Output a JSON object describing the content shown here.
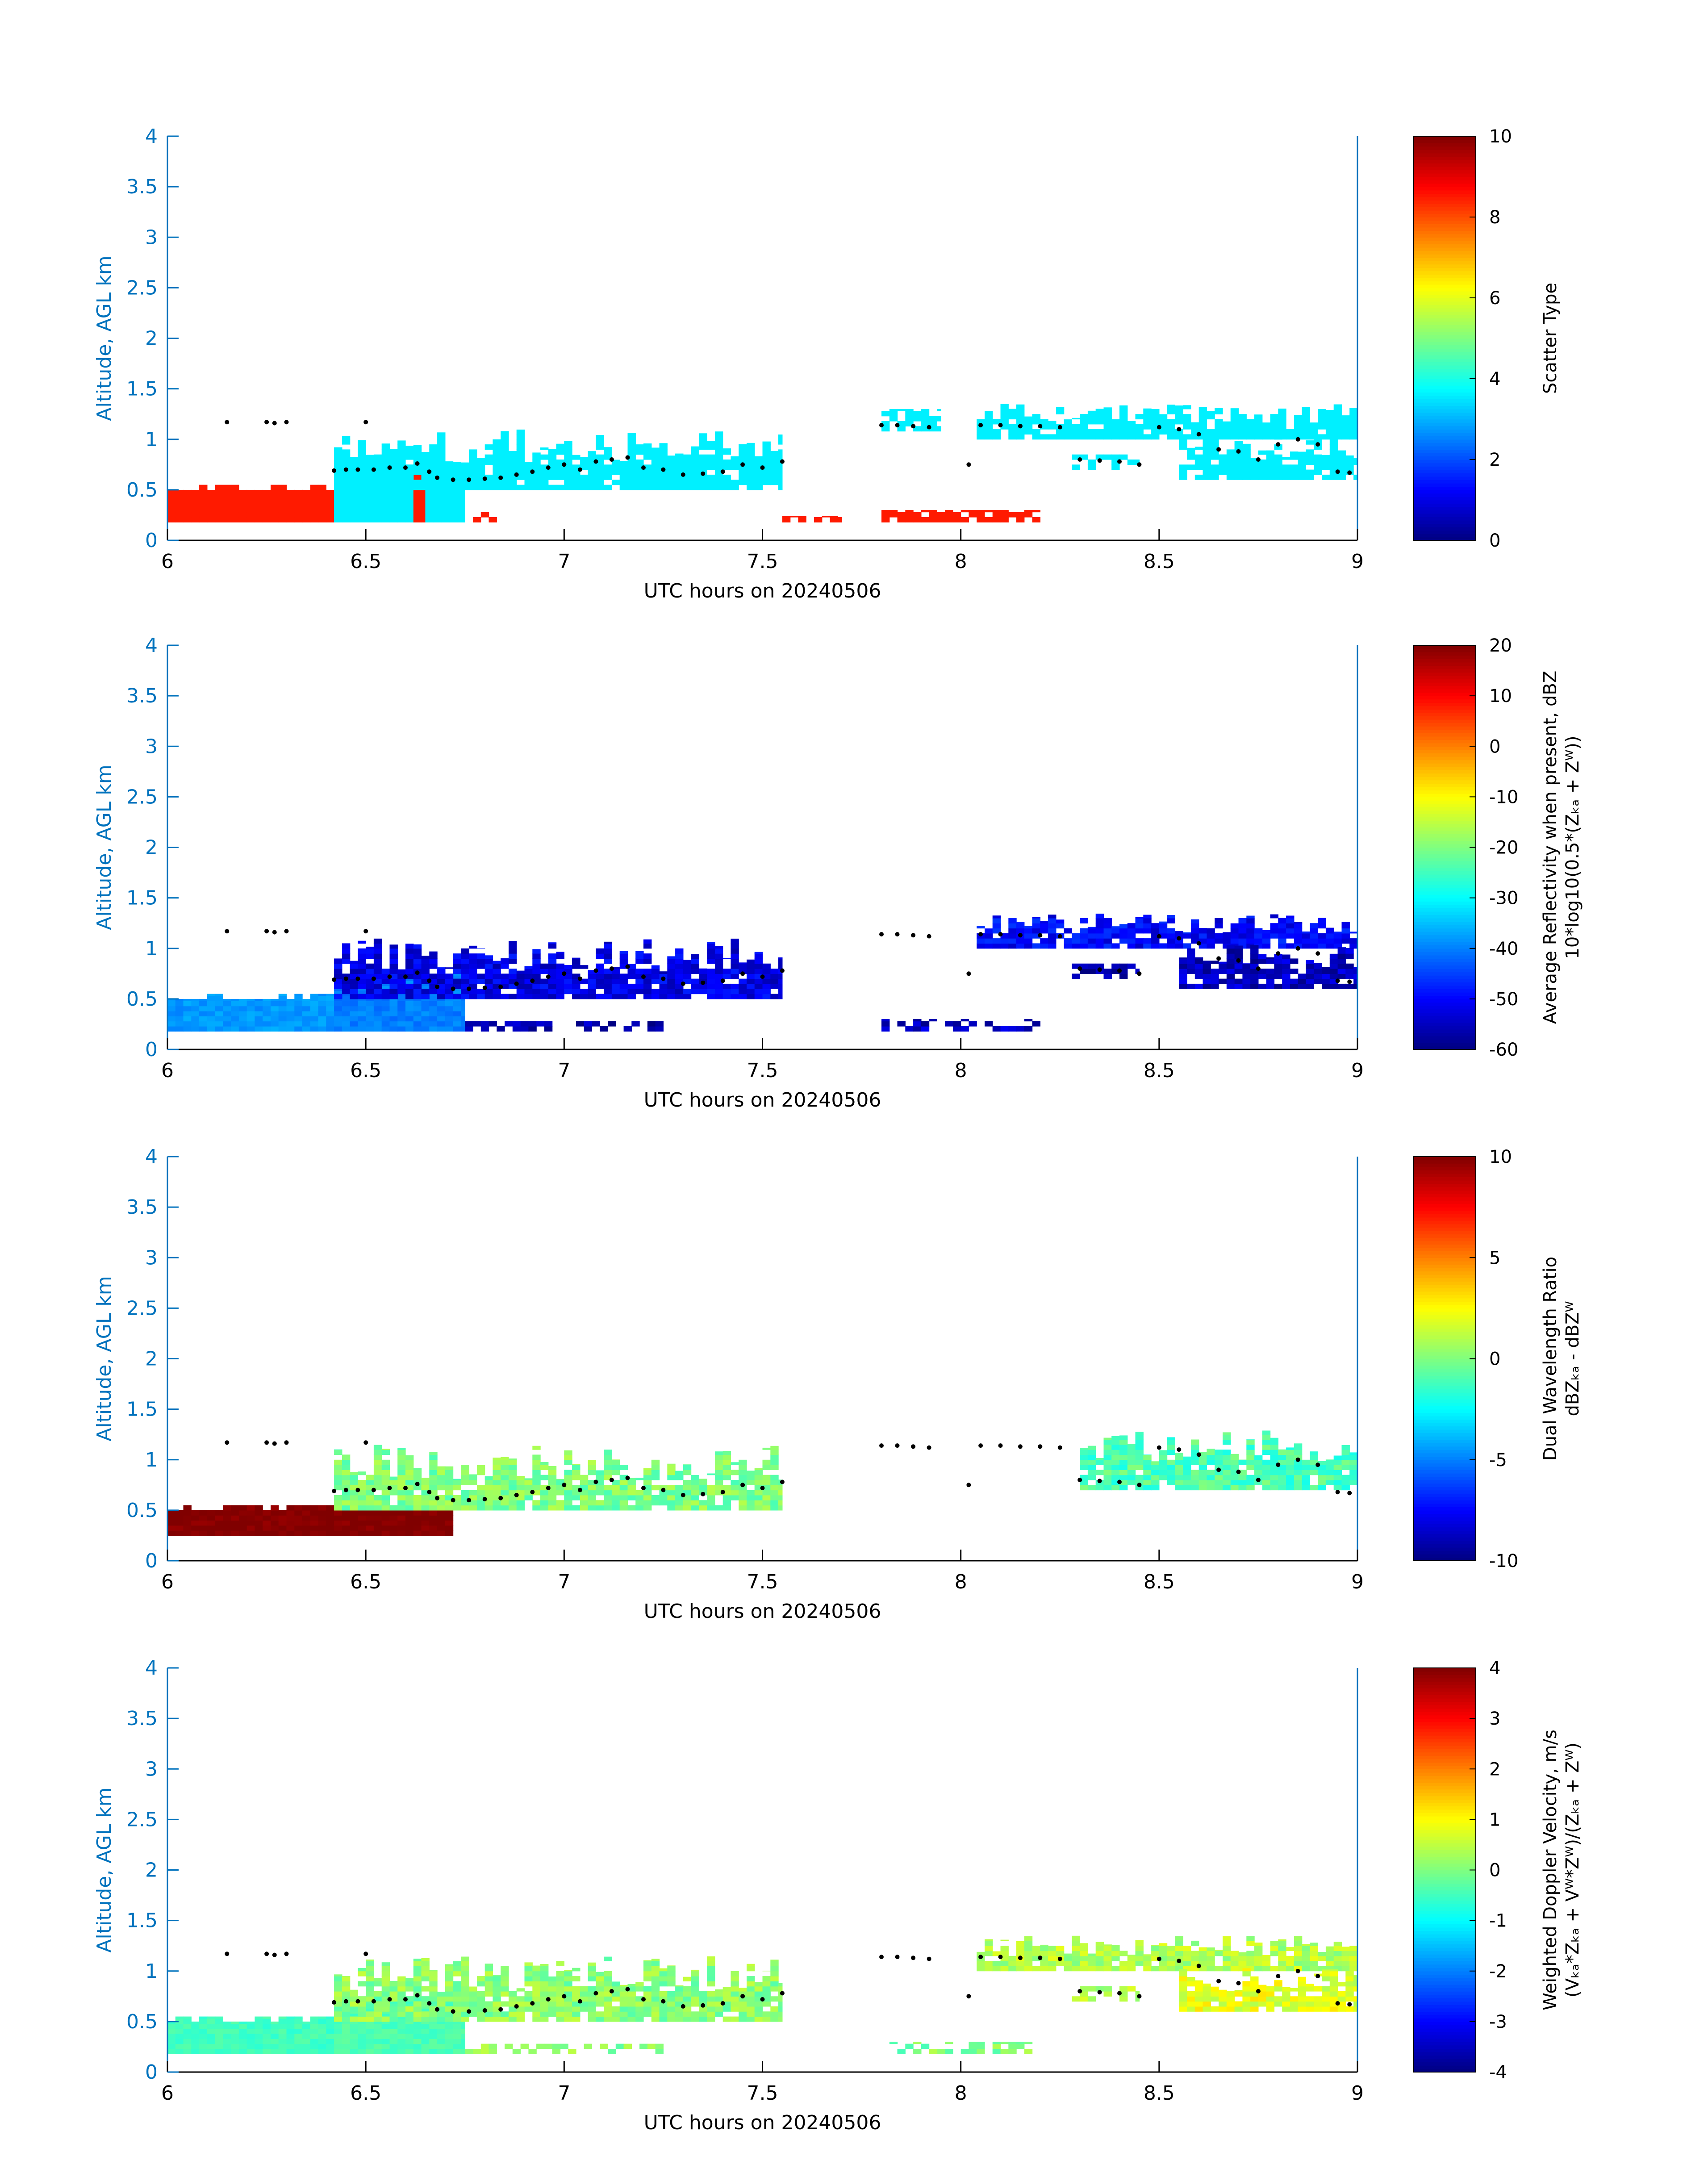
{
  "figure": {
    "date": "20240506"
  },
  "colors": {
    "axis_y": "#0072BD",
    "axis_right": "#0072BD",
    "ink": "#000000"
  },
  "chart_data": [
    {
      "type": "heatmap",
      "name": "scatter-type",
      "xlabel": "UTC hours on 20240506",
      "ylabel": "Altitude, AGL km",
      "xlim": [
        6,
        9
      ],
      "ylim": [
        0,
        4
      ],
      "xticks": [
        "6",
        "6.5",
        "7",
        "7.5",
        "8",
        "8.5",
        "9"
      ],
      "yticks": [
        "0",
        "0.5",
        "1",
        "1.5",
        "2",
        "2.5",
        "3",
        "3.5",
        "4"
      ],
      "colorbar": {
        "title_lines": [
          "Scatter Type"
        ],
        "clim": [
          0,
          10
        ],
        "ticks": [
          "0",
          "2",
          "4",
          "6",
          "8",
          "10"
        ]
      },
      "regions": [
        {
          "x0": 6.0,
          "x1": 6.42,
          "y0": 0.18,
          "y1": 0.55,
          "value": 8.5,
          "pattern": "ragged-top"
        },
        {
          "x0": 6.42,
          "x1": 6.62,
          "y0": 0.18,
          "y1": 0.75,
          "value": 3.6,
          "pattern": "block"
        },
        {
          "x0": 6.62,
          "x1": 6.65,
          "y0": 0.18,
          "y1": 0.65,
          "value": 8.5,
          "pattern": "block"
        },
        {
          "x0": 6.65,
          "x1": 6.75,
          "y0": 0.18,
          "y1": 0.75,
          "value": 3.6,
          "pattern": "block"
        },
        {
          "x0": 6.42,
          "x1": 7.55,
          "y0": 0.5,
          "y1": 1.1,
          "value": 3.6,
          "pattern": "columns"
        },
        {
          "x0": 6.75,
          "x1": 6.83,
          "y0": 0.18,
          "y1": 0.28,
          "value": 8.5,
          "pattern": "sparse"
        },
        {
          "x0": 7.8,
          "x1": 7.95,
          "y0": 1.08,
          "y1": 1.3,
          "value": 3.6,
          "pattern": "sparse"
        },
        {
          "x0": 8.04,
          "x1": 9.0,
          "y0": 1.0,
          "y1": 1.35,
          "value": 3.6,
          "pattern": "columns"
        },
        {
          "x0": 8.28,
          "x1": 8.45,
          "y0": 0.7,
          "y1": 0.85,
          "value": 3.6,
          "pattern": "sparse"
        },
        {
          "x0": 8.55,
          "x1": 9.0,
          "y0": 0.6,
          "y1": 1.05,
          "value": 3.6,
          "pattern": "columns"
        },
        {
          "x0": 7.8,
          "x1": 8.2,
          "y0": 0.18,
          "y1": 0.3,
          "value": 8.5,
          "pattern": "sparse"
        },
        {
          "x0": 7.55,
          "x1": 7.7,
          "y0": 0.18,
          "y1": 0.24,
          "value": 8.5,
          "pattern": "sparse"
        }
      ],
      "cloud_base_points": [
        [
          6.15,
          1.17
        ],
        [
          6.25,
          1.17
        ],
        [
          6.27,
          1.16
        ],
        [
          6.3,
          1.17
        ],
        [
          6.5,
          1.17
        ],
        [
          6.42,
          0.69
        ],
        [
          6.45,
          0.7
        ],
        [
          6.48,
          0.7
        ],
        [
          6.52,
          0.7
        ],
        [
          6.56,
          0.72
        ],
        [
          6.6,
          0.72
        ],
        [
          6.63,
          0.76
        ],
        [
          6.66,
          0.68
        ],
        [
          6.68,
          0.62
        ],
        [
          6.72,
          0.6
        ],
        [
          6.76,
          0.6
        ],
        [
          6.8,
          0.61
        ],
        [
          6.84,
          0.62
        ],
        [
          6.88,
          0.65
        ],
        [
          6.92,
          0.68
        ],
        [
          6.96,
          0.72
        ],
        [
          7.0,
          0.75
        ],
        [
          7.04,
          0.7
        ],
        [
          7.08,
          0.78
        ],
        [
          7.12,
          0.8
        ],
        [
          7.16,
          0.82
        ],
        [
          7.2,
          0.72
        ],
        [
          7.25,
          0.7
        ],
        [
          7.3,
          0.65
        ],
        [
          7.35,
          0.66
        ],
        [
          7.4,
          0.68
        ],
        [
          7.45,
          0.75
        ],
        [
          7.5,
          0.72
        ],
        [
          7.55,
          0.78
        ],
        [
          7.8,
          1.14
        ],
        [
          7.84,
          1.14
        ],
        [
          7.88,
          1.13
        ],
        [
          7.92,
          1.12
        ],
        [
          8.02,
          0.75
        ],
        [
          8.05,
          1.14
        ],
        [
          8.1,
          1.14
        ],
        [
          8.15,
          1.13
        ],
        [
          8.2,
          1.13
        ],
        [
          8.25,
          1.12
        ],
        [
          8.3,
          0.8
        ],
        [
          8.35,
          0.79
        ],
        [
          8.4,
          0.78
        ],
        [
          8.45,
          0.75
        ],
        [
          8.5,
          1.12
        ],
        [
          8.55,
          1.1
        ],
        [
          8.6,
          1.05
        ],
        [
          8.65,
          0.9
        ],
        [
          8.7,
          0.88
        ],
        [
          8.75,
          0.8
        ],
        [
          8.8,
          0.95
        ],
        [
          8.85,
          1.0
        ],
        [
          8.9,
          0.95
        ],
        [
          8.95,
          0.68
        ],
        [
          8.98,
          0.67
        ]
      ]
    },
    {
      "type": "heatmap",
      "name": "reflectivity",
      "xlabel": "UTC hours on 20240506",
      "ylabel": "Altitude, AGL km",
      "xlim": [
        6,
        9
      ],
      "ylim": [
        0,
        4
      ],
      "xticks": [
        "6",
        "6.5",
        "7",
        "7.5",
        "8",
        "8.5",
        "9"
      ],
      "yticks": [
        "0",
        "0.5",
        "1",
        "1.5",
        "2",
        "2.5",
        "3",
        "3.5",
        "4"
      ],
      "colorbar": {
        "title_lines": [
          "Average Reflectivity when present, dBZ",
          "10*log10(0.5*(Zₖₐ + Zᵂ))"
        ],
        "clim": [
          -60,
          20
        ],
        "ticks": [
          "-60",
          "-50",
          "-40",
          "-30",
          "-20",
          "-10",
          "0",
          "10",
          "20"
        ]
      },
      "regions": [
        {
          "x0": 6.0,
          "x1": 6.42,
          "y0": 0.18,
          "y1": 0.55,
          "value": -38,
          "pattern": "ragged-top"
        },
        {
          "x0": 6.42,
          "x1": 6.75,
          "y0": 0.18,
          "y1": 0.75,
          "value": -40,
          "pattern": "block"
        },
        {
          "x0": 6.42,
          "x1": 7.55,
          "y0": 0.5,
          "y1": 1.1,
          "value": -52,
          "pattern": "columns"
        },
        {
          "x0": 6.75,
          "x1": 7.25,
          "y0": 0.18,
          "y1": 0.28,
          "value": -57,
          "pattern": "sparse"
        },
        {
          "x0": 7.8,
          "x1": 8.2,
          "y0": 0.18,
          "y1": 0.3,
          "value": -55,
          "pattern": "sparse"
        },
        {
          "x0": 8.04,
          "x1": 9.0,
          "y0": 1.0,
          "y1": 1.35,
          "value": -50,
          "pattern": "columns"
        },
        {
          "x0": 8.28,
          "x1": 8.45,
          "y0": 0.7,
          "y1": 0.85,
          "value": -58,
          "pattern": "sparse"
        },
        {
          "x0": 8.55,
          "x1": 9.0,
          "y0": 0.6,
          "y1": 1.05,
          "value": -55,
          "pattern": "columns"
        }
      ]
    },
    {
      "type": "heatmap",
      "name": "dual-wavelength-ratio",
      "xlabel": "UTC hours on 20240506",
      "ylabel": "Altitude, AGL km",
      "xlim": [
        6,
        9
      ],
      "ylim": [
        0,
        4
      ],
      "xticks": [
        "6",
        "6.5",
        "7",
        "7.5",
        "8",
        "8.5",
        "9"
      ],
      "yticks": [
        "0",
        "0.5",
        "1",
        "1.5",
        "2",
        "2.5",
        "3",
        "3.5",
        "4"
      ],
      "colorbar": {
        "title_lines": [
          "Dual Wavelength Ratio",
          "dBZₖₐ - dBZᵂ"
        ],
        "clim": [
          -10,
          10
        ],
        "ticks": [
          "-10",
          "-5",
          "0",
          "5",
          "10"
        ]
      },
      "regions": [
        {
          "x0": 6.0,
          "x1": 6.72,
          "y0": 0.25,
          "y1": 0.55,
          "value": 10,
          "pattern": "ragged-top"
        },
        {
          "x0": 6.42,
          "x1": 7.55,
          "y0": 0.5,
          "y1": 1.15,
          "value": 0,
          "pattern": "columns"
        },
        {
          "x0": 8.3,
          "x1": 9.0,
          "y0": 0.7,
          "y1": 1.3,
          "value": -1,
          "pattern": "columns"
        }
      ]
    },
    {
      "type": "heatmap",
      "name": "doppler-velocity",
      "xlabel": "UTC hours on 20240506",
      "ylabel": "Altitude, AGL km",
      "xlim": [
        6,
        9
      ],
      "ylim": [
        0,
        4
      ],
      "xticks": [
        "6",
        "6.5",
        "7",
        "7.5",
        "8",
        "8.5",
        "9"
      ],
      "yticks": [
        "0",
        "0.5",
        "1",
        "1.5",
        "2",
        "2.5",
        "3",
        "3.5",
        "4"
      ],
      "colorbar": {
        "title_lines": [
          "Weighted Doppler Velocity, m/s",
          "(Vₖₐ*Zₖₐ + Vᵂ*Zᵂ)/(Zₖₐ + Zᵂ)"
        ],
        "clim": [
          -4,
          4
        ],
        "ticks": [
          "-4",
          "-3",
          "-2",
          "-1",
          "0",
          "1",
          "2",
          "3",
          "4"
        ]
      },
      "regions": [
        {
          "x0": 6.0,
          "x1": 6.42,
          "y0": 0.18,
          "y1": 0.55,
          "value": -0.5,
          "pattern": "ragged-top"
        },
        {
          "x0": 6.42,
          "x1": 6.75,
          "y0": 0.18,
          "y1": 0.75,
          "value": -0.4,
          "pattern": "block"
        },
        {
          "x0": 6.42,
          "x1": 7.55,
          "y0": 0.5,
          "y1": 1.15,
          "value": 0.1,
          "pattern": "columns"
        },
        {
          "x0": 6.75,
          "x1": 7.25,
          "y0": 0.18,
          "y1": 0.28,
          "value": 0.1,
          "pattern": "sparse"
        },
        {
          "x0": 7.8,
          "x1": 8.2,
          "y0": 0.18,
          "y1": 0.3,
          "value": 0.0,
          "pattern": "sparse"
        },
        {
          "x0": 8.04,
          "x1": 9.0,
          "y0": 1.0,
          "y1": 1.35,
          "value": 0.4,
          "pattern": "columns"
        },
        {
          "x0": 8.28,
          "x1": 8.45,
          "y0": 0.7,
          "y1": 0.85,
          "value": 0.3,
          "pattern": "sparse"
        },
        {
          "x0": 8.55,
          "x1": 9.0,
          "y0": 0.6,
          "y1": 1.05,
          "value": 0.8,
          "pattern": "columns"
        }
      ]
    }
  ]
}
